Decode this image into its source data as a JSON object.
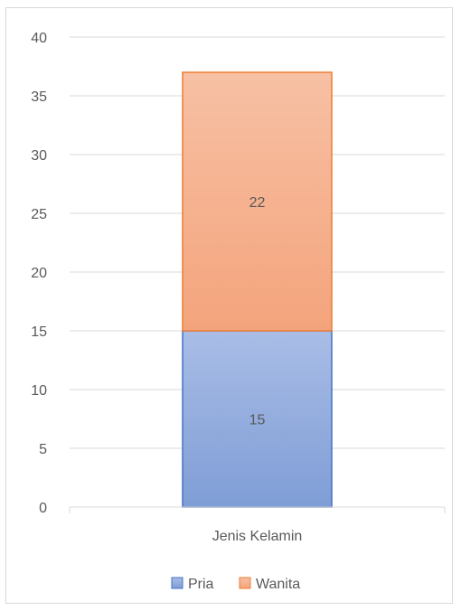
{
  "chart_data": {
    "type": "bar",
    "stacked": true,
    "categories": [
      "Jenis Kelamin"
    ],
    "series": [
      {
        "name": "Pria",
        "values": [
          15
        ],
        "color": "#8faadc"
      },
      {
        "name": "Wanita",
        "values": [
          22
        ],
        "color": "#f4b183"
      }
    ],
    "title": "",
    "xlabel": "",
    "ylabel": "",
    "ylim": [
      0,
      40
    ],
    "yticks": [
      0,
      5,
      10,
      15,
      20,
      25,
      30,
      35,
      40
    ],
    "grid": true,
    "legend_position": "bottom",
    "data_labels": true
  }
}
